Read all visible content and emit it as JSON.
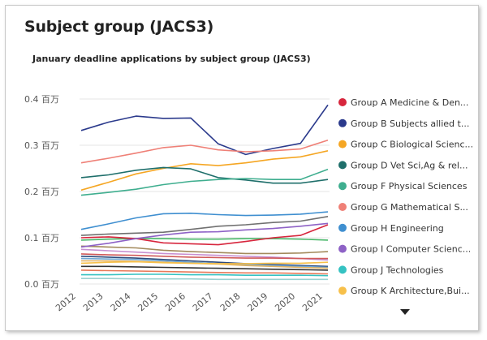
{
  "header": {
    "title": "Subject group (JACS3)"
  },
  "chart_data": {
    "type": "line",
    "title": "January deadline applications by subject group (JACS3)",
    "xlabel": "",
    "ylabel": "",
    "x": [
      "2012",
      "2013",
      "2014",
      "2015",
      "2016",
      "2017",
      "2018",
      "2019",
      "2020",
      "2021"
    ],
    "ylim": [
      0,
      0.4
    ],
    "yticks": [
      {
        "value": 0.0,
        "label": "0.0 百万"
      },
      {
        "value": 0.1,
        "label": "0.1 百万"
      },
      {
        "value": 0.2,
        "label": "0.2 百万"
      },
      {
        "value": 0.3,
        "label": "0.3 百万"
      },
      {
        "value": 0.4,
        "label": "0.4 百万"
      }
    ],
    "grid": true,
    "legend_position": "right",
    "series": [
      {
        "name": "Group A Medicine & Den...",
        "color": "#d7263d",
        "values": [
          0.1,
          0.102,
          0.098,
          0.089,
          0.087,
          0.085,
          0.092,
          0.1,
          0.105,
          0.128
        ]
      },
      {
        "name": "Group B Subjects allied t...",
        "color": "#2b3a8c",
        "values": [
          0.332,
          0.35,
          0.363,
          0.358,
          0.359,
          0.303,
          0.28,
          0.293,
          0.304,
          0.387
        ]
      },
      {
        "name": "Group C Biological Scienc...",
        "color": "#f5a623",
        "values": [
          0.203,
          0.22,
          0.238,
          0.25,
          0.26,
          0.256,
          0.262,
          0.27,
          0.275,
          0.288
        ]
      },
      {
        "name": "Group D Vet Sci,Ag & rel...",
        "color": "#1f6f6b",
        "values": [
          0.23,
          0.236,
          0.246,
          0.252,
          0.249,
          0.23,
          0.225,
          0.218,
          0.218,
          0.226
        ]
      },
      {
        "name": "Group F Physical Sciences",
        "color": "#3fae8f",
        "values": [
          0.192,
          0.198,
          0.205,
          0.215,
          0.222,
          0.226,
          0.228,
          0.226,
          0.226,
          0.248
        ]
      },
      {
        "name": "Group G Mathematical S...",
        "color": "#ef8077",
        "values": [
          0.262,
          0.272,
          0.283,
          0.295,
          0.3,
          0.29,
          0.286,
          0.288,
          0.292,
          0.311
        ]
      },
      {
        "name": "Group H Engineering",
        "color": "#3f8fd0",
        "values": [
          0.118,
          0.13,
          0.143,
          0.152,
          0.153,
          0.15,
          0.148,
          0.149,
          0.151,
          0.156
        ]
      },
      {
        "name": "Group I Computer Scienc...",
        "color": "#8e62c6",
        "values": [
          0.08,
          0.088,
          0.098,
          0.106,
          0.112,
          0.113,
          0.117,
          0.12,
          0.125,
          0.131
        ]
      },
      {
        "name": "Group J Technologies",
        "color": "#35c2c2",
        "values": [
          0.02,
          0.02,
          0.021,
          0.021,
          0.02,
          0.02,
          0.019,
          0.019,
          0.019,
          0.018
        ]
      },
      {
        "name": "Group K Architecture,Bui...",
        "color": "#f7c04a",
        "values": [
          0.045,
          0.047,
          0.048,
          0.046,
          0.045,
          0.044,
          0.044,
          0.045,
          0.045,
          0.047
        ]
      }
    ],
    "extra_series": [
      {
        "color": "#707070",
        "values": [
          0.105,
          0.108,
          0.11,
          0.112,
          0.118,
          0.125,
          0.128,
          0.133,
          0.136,
          0.146
        ]
      },
      {
        "color": "#4ab86b",
        "values": [
          0.095,
          0.097,
          0.098,
          0.098,
          0.097,
          0.097,
          0.098,
          0.098,
          0.097,
          0.095
        ]
      },
      {
        "color": "#a38a5c",
        "values": [
          0.082,
          0.08,
          0.078,
          0.073,
          0.07,
          0.068,
          0.066,
          0.066,
          0.067,
          0.07
        ]
      },
      {
        "color": "#c88fd0",
        "values": [
          0.075,
          0.072,
          0.069,
          0.066,
          0.064,
          0.062,
          0.06,
          0.058,
          0.055,
          0.052
        ]
      },
      {
        "color": "#d05a5a",
        "values": [
          0.065,
          0.063,
          0.062,
          0.06,
          0.058,
          0.057,
          0.056,
          0.056,
          0.055,
          0.055
        ]
      },
      {
        "color": "#2e4a7a",
        "values": [
          0.06,
          0.058,
          0.056,
          0.053,
          0.05,
          0.047,
          0.044,
          0.042,
          0.04,
          0.038
        ]
      },
      {
        "color": "#6fa8d6",
        "values": [
          0.055,
          0.054,
          0.053,
          0.05,
          0.047,
          0.044,
          0.042,
          0.04,
          0.038,
          0.036
        ]
      },
      {
        "color": "#e0b060",
        "values": [
          0.05,
          0.05,
          0.049,
          0.047,
          0.045,
          0.043,
          0.04,
          0.038,
          0.036,
          0.034
        ]
      },
      {
        "color": "#333333",
        "values": [
          0.038,
          0.038,
          0.037,
          0.036,
          0.035,
          0.034,
          0.033,
          0.032,
          0.031,
          0.03
        ]
      },
      {
        "color": "#e87a5a",
        "values": [
          0.03,
          0.029,
          0.028,
          0.027,
          0.026,
          0.025,
          0.024,
          0.024,
          0.023,
          0.022
        ]
      },
      {
        "color": "#9bd1d1",
        "values": [
          0.012,
          0.012,
          0.011,
          0.011,
          0.011,
          0.01,
          0.01,
          0.01,
          0.01,
          0.01
        ]
      }
    ]
  }
}
